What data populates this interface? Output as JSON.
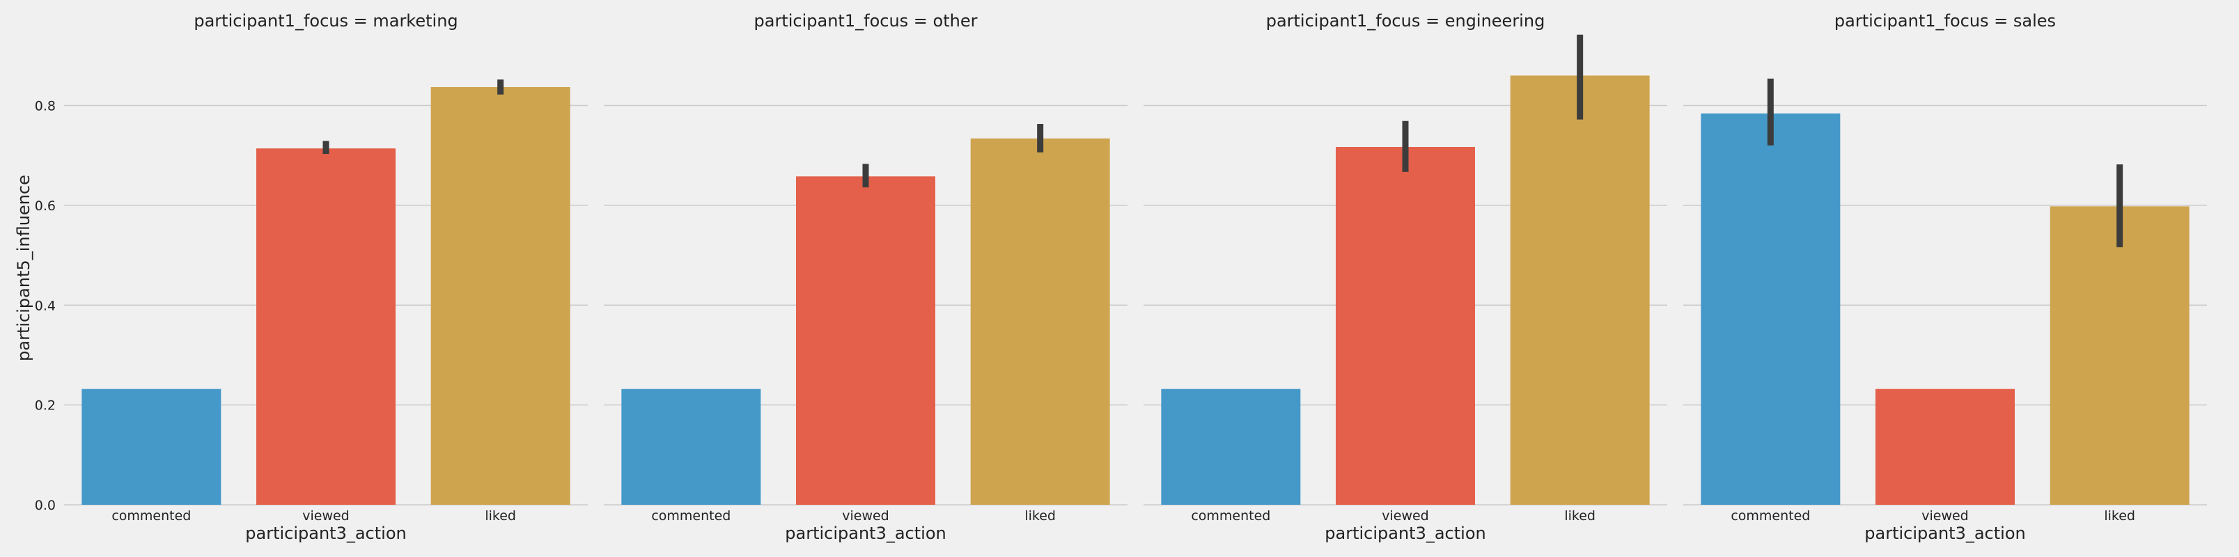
{
  "chart_data": {
    "type": "bar",
    "ylabel": "participant5_influence",
    "xlabel": "participant3_action",
    "ylim": [
      0,
      0.95
    ],
    "yticks": [
      "0.0",
      "0.2",
      "0.4",
      "0.6",
      "0.8"
    ],
    "grid": true,
    "categories": [
      "commented",
      "viewed",
      "liked"
    ],
    "colors": [
      "#4599c9",
      "#e4604b",
      "#cfa44f"
    ],
    "error_bar_color": "#3c3c3c",
    "facets": [
      {
        "title": "participant1_focus = marketing",
        "values": [
          0.232,
          0.714,
          0.837
        ],
        "errors": [
          null,
          [
            0.703,
            0.729
          ],
          [
            0.822,
            0.852
          ]
        ]
      },
      {
        "title": "participant1_focus = other",
        "values": [
          0.232,
          0.658,
          0.734
        ],
        "errors": [
          null,
          [
            0.636,
            0.683
          ],
          [
            0.706,
            0.763
          ]
        ]
      },
      {
        "title": "participant1_focus = engineering",
        "values": [
          0.232,
          0.717,
          0.86
        ],
        "errors": [
          null,
          [
            0.667,
            0.769
          ],
          [
            0.772,
            0.942
          ]
        ]
      },
      {
        "title": "participant1_focus = sales",
        "values": [
          0.784,
          0.232,
          0.598
        ],
        "errors": [
          [
            0.72,
            0.854
          ],
          null,
          [
            0.516,
            0.682
          ]
        ]
      }
    ]
  }
}
